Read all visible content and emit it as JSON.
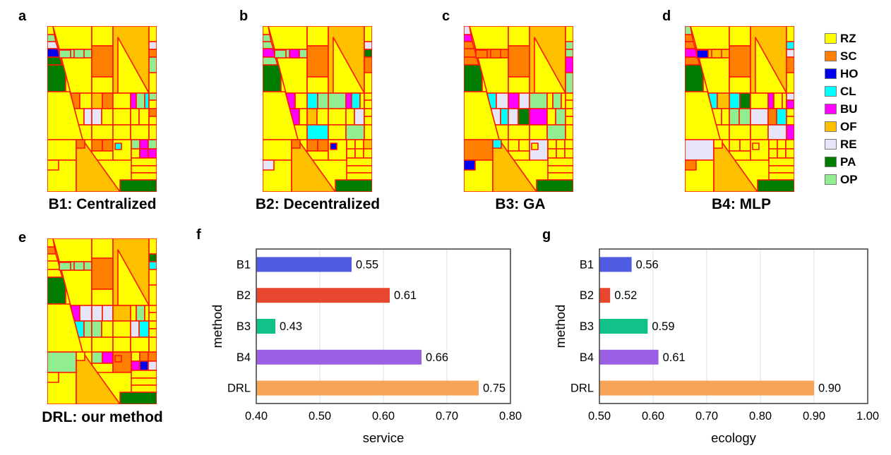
{
  "figure": {
    "panel_letters": [
      "a",
      "b",
      "c",
      "d",
      "e",
      "f",
      "g"
    ]
  },
  "legend": {
    "items": [
      {
        "code": "RZ",
        "color": "#FFFF00"
      },
      {
        "code": "SC",
        "color": "#FF8000"
      },
      {
        "code": "HO",
        "color": "#0000EE"
      },
      {
        "code": "CL",
        "color": "#00FFFF"
      },
      {
        "code": "BU",
        "color": "#FF00FF"
      },
      {
        "code": "OF",
        "color": "#FFC000"
      },
      {
        "code": "RE",
        "color": "#E6E4F7"
      },
      {
        "code": "PA",
        "color": "#007D00"
      },
      {
        "code": "OP",
        "color": "#90EE90"
      }
    ]
  },
  "maps": {
    "border_color": "#FF1500",
    "panels": [
      {
        "letter": "a",
        "caption": "B1: Centralized",
        "land_use": {
          "1": "OP",
          "2": "RE",
          "3": "HO",
          "4": "PA",
          "5": "PA",
          "7": "OP",
          "10": "SC",
          "12": "OF",
          "15": "RE",
          "16": "SC",
          "17": "OP",
          "19": "SC",
          "21": "OF",
          "22": "SC",
          "24": "BU",
          "25": "OP",
          "26": "CL",
          "27": "OP",
          "30": "RE",
          "31": "RE",
          "36": "SC",
          "43": "SC",
          "44": "SC",
          "47": "CL",
          "48": "OP",
          "49": "BU",
          "50": "OP",
          "52": "BU",
          "53": "BU",
          "60": "OF",
          "61": "SC",
          "62": "PA",
          "64": "OP",
          "65": "OP"
        }
      },
      {
        "letter": "b",
        "caption": "B2: Decentralized",
        "land_use": {
          "1": "OP",
          "2": "OP",
          "3": "BU",
          "4": "OP",
          "5": "PA",
          "7": "OP",
          "10": "SC",
          "12": "OF",
          "15": "RE",
          "16": "PA",
          "17": "SC",
          "19": "BU",
          "21": "CL",
          "22": "OP",
          "23": "OP",
          "24": "BU",
          "25": "CL",
          "29": "BU",
          "31": "OF",
          "35": "RE",
          "39": "CL",
          "41": "OP",
          "43": "SC",
          "44": "SC",
          "47": "HO",
          "50": "OF",
          "60": "OF",
          "61": "SC",
          "62": "PA",
          "63": "RE",
          "64": "OP",
          "65": "BU"
        }
      },
      {
        "letter": "c",
        "caption": "B3: GA",
        "land_use": {
          "0": "RE",
          "1": "BU",
          "2": "SC",
          "3": "SC",
          "4": "SC",
          "5": "PA",
          "7": "SC",
          "10": "SC",
          "12": "OF",
          "15": "OP",
          "16": "OP",
          "17": "BU",
          "18": "OP",
          "19": "CL",
          "20": "RE",
          "21": "BU",
          "22": "RE",
          "23": "OP",
          "25": "OP",
          "29": "RE",
          "30": "CL",
          "31": "RE",
          "32": "PA",
          "33": "BU",
          "35": "OP",
          "41": "OP",
          "46": "RE",
          "58": "SC",
          "60": "OF",
          "61": "CL",
          "62": "PA",
          "63": "HO",
          "64": "SC",
          "65": "SC"
        }
      },
      {
        "letter": "d",
        "caption": "B4: MLP",
        "land_use": {
          "0": "OP",
          "1": "SC",
          "2": "SC",
          "3": "BU",
          "4": "SC",
          "5": "PA",
          "7": "OF",
          "10": "SC",
          "12": "OF",
          "15": "CL",
          "16": "RE",
          "17": "SC",
          "19": "CL",
          "20": "OF",
          "21": "CL",
          "22": "PA",
          "24": "BU",
          "27": "RE",
          "28": "BU",
          "31": "OP",
          "32": "OP",
          "33": "RE",
          "34": "SC",
          "35": "CL",
          "41": "RE",
          "42": "BU",
          "58": "RE",
          "60": "OF",
          "62": "PA",
          "63": "SC",
          "64": "HO",
          "65": "OF"
        }
      },
      {
        "letter": "e",
        "caption": "DRL: our method",
        "land_use": {
          "1": "SC",
          "5": "PA",
          "7": "OP",
          "10": "SC",
          "12": "OF",
          "15": "PA",
          "16": "CL",
          "19": "BU",
          "20": "RE",
          "21": "RE",
          "22": "RE",
          "23": "OF",
          "25": "OP",
          "29": "CL",
          "30": "OP",
          "31": "OP",
          "34": "RE",
          "35": "CL",
          "43": "OP",
          "44": "BU",
          "46": "SC",
          "47": "SC",
          "49": "SC",
          "50": "SC",
          "51": "BU",
          "52": "HO",
          "53": "RE",
          "58": "OP",
          "60": "OF",
          "62": "PA",
          "64": "OP",
          "65": "OP"
        }
      }
    ]
  },
  "chart_data": [
    {
      "type": "bar",
      "orientation": "horizontal",
      "panel": "f",
      "categories": [
        "B1",
        "B2",
        "B3",
        "B4",
        "DRL"
      ],
      "values": [
        0.55,
        0.61,
        0.43,
        0.66,
        0.75
      ],
      "value_labels": [
        "0.55",
        "0.61",
        "0.43",
        "0.66",
        "0.75"
      ],
      "bar_colors": [
        "#4F5BE0",
        "#E8472F",
        "#12C08A",
        "#9B5FE3",
        "#F7A457"
      ],
      "xlabel": "service",
      "ylabel": "method",
      "xlim": [
        0.4,
        0.8
      ],
      "xticks": [
        0.4,
        0.5,
        0.6,
        0.7,
        0.8
      ],
      "xtick_labels": [
        "0.40",
        "0.50",
        "0.60",
        "0.70",
        "0.80"
      ],
      "grid": true,
      "legend_position": "none"
    },
    {
      "type": "bar",
      "orientation": "horizontal",
      "panel": "g",
      "categories": [
        "B1",
        "B2",
        "B3",
        "B4",
        "DRL"
      ],
      "values": [
        0.56,
        0.52,
        0.59,
        0.61,
        0.9
      ],
      "value_labels": [
        "0.56",
        "0.52",
        "0.59",
        "0.61",
        "0.90"
      ],
      "bar_colors": [
        "#4F5BE0",
        "#E8472F",
        "#12C08A",
        "#9B5FE3",
        "#F7A457"
      ],
      "xlabel": "ecology",
      "ylabel": "method",
      "xlim": [
        0.5,
        1.0
      ],
      "xticks": [
        0.5,
        0.6,
        0.7,
        0.8,
        0.9,
        1.0
      ],
      "xtick_labels": [
        "0.50",
        "0.60",
        "0.70",
        "0.80",
        "0.90",
        "1.00"
      ],
      "grid": true,
      "legend_position": "none"
    }
  ]
}
